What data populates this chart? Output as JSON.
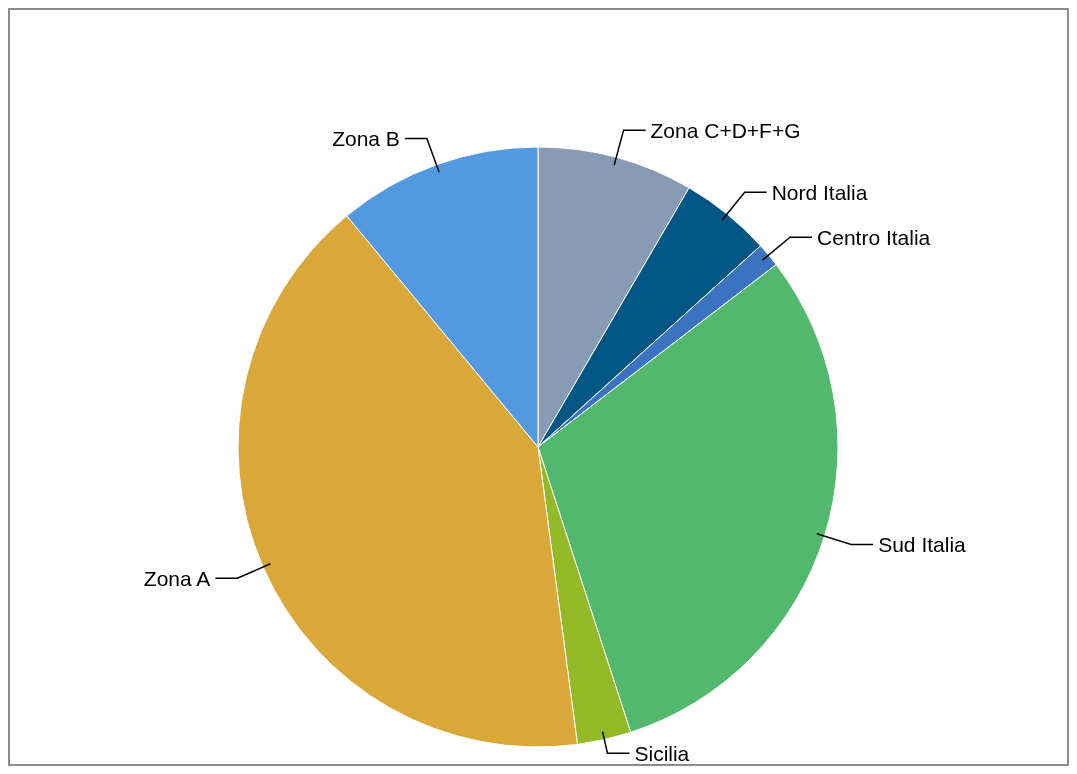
{
  "chart_data": {
    "type": "pie",
    "categories": [
      "Zona C+D+F+G",
      "Nord Italia",
      "Centro Italia",
      "Sud Italia",
      "Sicilia",
      "Zona A",
      "Zona B"
    ],
    "values": [
      8.4,
      4.9,
      1.3,
      30.4,
      2.9,
      41.1,
      11.0
    ],
    "colors": [
      "#879cb4",
      "#005684",
      "#3b73c0",
      "#52b86d",
      "#93b926",
      "#d9a838",
      "#5399e0"
    ],
    "legend": false
  }
}
